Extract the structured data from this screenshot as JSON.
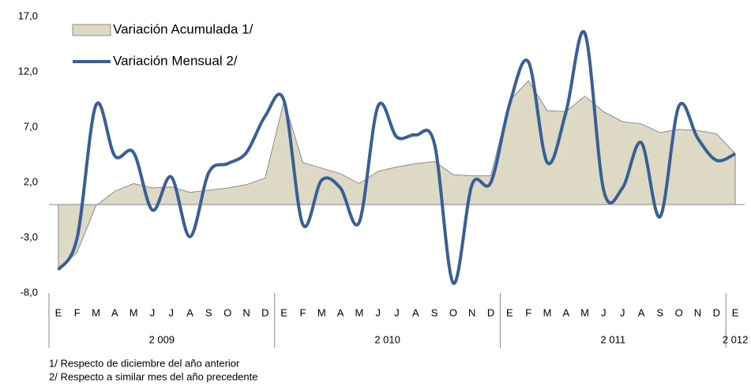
{
  "chart_data": {
    "type": "area-line",
    "categories": [
      "E",
      "F",
      "M",
      "A",
      "M",
      "J",
      "J",
      "A",
      "S",
      "O",
      "N",
      "D",
      "E",
      "F",
      "M",
      "A",
      "M",
      "J",
      "J",
      "A",
      "S",
      "O",
      "N",
      "D",
      "E",
      "F",
      "M",
      "A",
      "M",
      "J",
      "J",
      "A",
      "S",
      "O",
      "N",
      "D",
      "E"
    ],
    "year_groups": [
      {
        "label": "2 009",
        "span": 12
      },
      {
        "label": "2 010",
        "span": 12
      },
      {
        "label": "2 011",
        "span": 12
      },
      {
        "label": "2 012",
        "span": 1
      }
    ],
    "series": [
      {
        "name": "Variación Acumulada 1/",
        "kind": "area",
        "color": "#ddd9c4",
        "values": [
          -5.9,
          -4.3,
          -0.1,
          1.2,
          1.9,
          1.5,
          1.6,
          1.1,
          1.3,
          1.5,
          1.8,
          2.4,
          9.4,
          3.8,
          3.3,
          2.8,
          1.9,
          3.0,
          3.4,
          3.7,
          3.9,
          2.7,
          2.6,
          2.6,
          9.4,
          11.2,
          8.5,
          8.4,
          9.8,
          8.4,
          7.5,
          7.3,
          6.5,
          6.8,
          6.7,
          6.4,
          4.6
        ]
      },
      {
        "name": "Variación Mensual 2/",
        "kind": "line",
        "color": "#3a5f95",
        "values": [
          -5.9,
          -3.0,
          9.0,
          4.4,
          4.7,
          -0.5,
          2.5,
          -2.9,
          2.9,
          3.7,
          4.7,
          8.0,
          9.4,
          -1.8,
          2.2,
          1.5,
          -1.6,
          8.9,
          6.1,
          6.3,
          5.5,
          -7.1,
          1.8,
          2.0,
          9.1,
          12.9,
          3.8,
          8.4,
          15.5,
          1.3,
          1.5,
          5.6,
          -1.1,
          8.9,
          6.0,
          4.0,
          4.6
        ]
      }
    ],
    "ylim": [
      -8,
      17
    ],
    "yticks": [
      {
        "value": 17,
        "label": "17,0"
      },
      {
        "value": 12,
        "label": "12,0"
      },
      {
        "value": 7,
        "label": "7,0"
      },
      {
        "value": 2,
        "label": "2,0"
      },
      {
        "value": -3,
        "label": "-3,0"
      },
      {
        "value": -8,
        "label": "-8,0"
      }
    ],
    "notes": [
      "1/ Respecto de diciembre del año anterior",
      "2/ Respecto a similar mes del año precedente"
    ]
  }
}
